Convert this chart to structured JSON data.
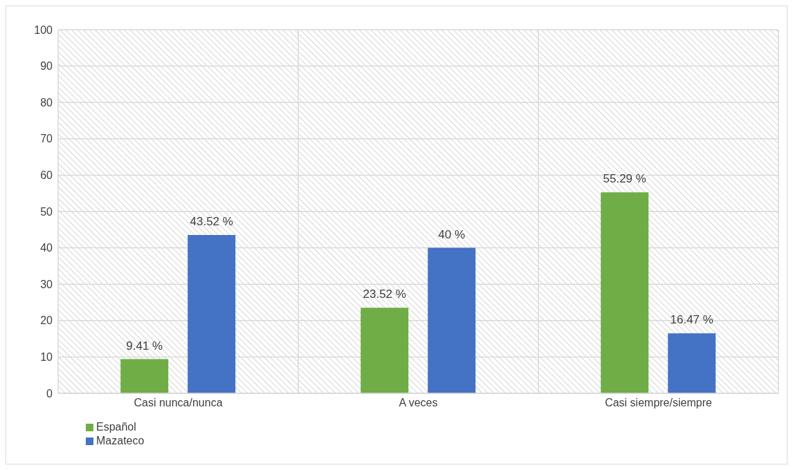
{
  "chart_data": {
    "type": "bar",
    "categories": [
      "Casi nunca/nunca",
      "A veces",
      "Casi siempre/siempre"
    ],
    "series": [
      {
        "name": "Español",
        "color": "#70ad47",
        "values": [
          9.41,
          23.52,
          55.29
        ],
        "value_labels": [
          "9.41 %",
          "23.52 %",
          "55.29 %"
        ]
      },
      {
        "name": "Mazateco",
        "color": "#4472c4",
        "values": [
          43.52,
          40,
          16.47
        ],
        "value_labels": [
          "43.52 %",
          "40 %",
          "16.47 %"
        ]
      }
    ],
    "ylim": [
      0,
      100
    ],
    "yticks": [
      0,
      10,
      20,
      30,
      40,
      50,
      60,
      70,
      80,
      90,
      100
    ],
    "grid": true,
    "legend": "bottom left"
  }
}
